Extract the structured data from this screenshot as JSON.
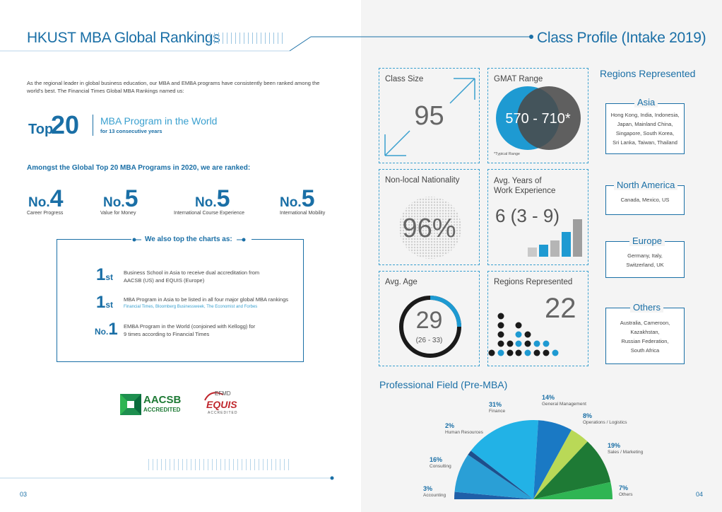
{
  "left": {
    "title": "HKUST MBA Global Rankings",
    "intro": "As the regional leader in global business education, our MBA and EMBA programs have consistently been ranked among the world's best. The Financial Times Global MBA Rankings named us:",
    "top": {
      "prefix": "Top",
      "number": "20",
      "headline": "MBA Program in the World",
      "sub": "for 13 consecutive years"
    },
    "amongst": "Amongst the Global Top 20 MBA Programs in 2020, we are ranked:",
    "ranks": [
      {
        "no": "No.",
        "num": "4",
        "caption": "Career Progress"
      },
      {
        "no": "No.",
        "num": "5",
        "caption": "Value for Money"
      },
      {
        "no": "No.",
        "num": "5",
        "caption": "International Course Experience"
      },
      {
        "no": "No.",
        "num": "5",
        "caption": "International Mobility"
      }
    ],
    "charts_title": "We also top the charts as:",
    "charts": [
      {
        "rank_big": "1",
        "rank_small": "st",
        "line1": "Business School in Asia to receive dual accreditation from",
        "line2": "AACSB (US) and EQUIS (Europe)"
      },
      {
        "rank_big": "1",
        "rank_small": "st",
        "line1": "MBA Program in Asia to be listed in all four major global MBA rankings",
        "line2": "Financial Times, Bloomberg Businessweek, The Economist and Forbes"
      },
      {
        "rank_big": "1",
        "rank_small": "No.",
        "line1": "EMBA Program in the World (conjoined with Kellogg) for",
        "line2": "9 times according to Financial Times"
      }
    ],
    "logos": {
      "aacsb": "AACSB",
      "aacsb_sub": "ACCREDITED",
      "efmd": "EFMD",
      "equis": "EQUIS",
      "equis_sub": "ACCREDITED"
    },
    "page_number": "03"
  },
  "right": {
    "title": "Class Profile (Intake 2019)",
    "class_size": {
      "label": "Class Size",
      "value": "95"
    },
    "gmat": {
      "label": "GMAT Range",
      "value": "570 - 710*",
      "note": "*Typical Range"
    },
    "nonlocal": {
      "label": "Non-local Nationality",
      "value": "96%"
    },
    "work": {
      "label_line1": "Avg. Years of",
      "label_line2": "Work Experience",
      "value": "6 (3 - 9)"
    },
    "age": {
      "label": "Avg. Age",
      "value": "29",
      "range": "(26 - 33)"
    },
    "regions_count": {
      "label": "Regions Represented",
      "value": "22"
    },
    "regions": {
      "heading": "Regions Represented",
      "asia": {
        "title": "Asia",
        "lines": [
          "Hong Kong, India, Indonesia,",
          "Japan, Mainland China,",
          "Singapore, South Korea,",
          "Sri Lanka, Taiwan, Thailand"
        ]
      },
      "na": {
        "title": "North America",
        "lines": [
          "Canada, Mexico, US"
        ]
      },
      "europe": {
        "title": "Europe",
        "lines": [
          "Germany, Italy,",
          "Switzerland, UK"
        ]
      },
      "others": {
        "title": "Others",
        "lines": [
          "Australia, Cameroon,",
          "Kazakhstan,",
          "Russian Federation,",
          "South Africa"
        ]
      }
    },
    "professional": {
      "title": "Professional Field (Pre-MBA)",
      "slices": [
        {
          "pct": "3%",
          "label": "Accounting",
          "value": 3,
          "color": "#1f5fa8"
        },
        {
          "pct": "16%",
          "label": "Consulting",
          "value": 16,
          "color": "#2a9fd6"
        },
        {
          "pct": "2%",
          "label": "Human Resources",
          "value": 2,
          "color": "#1d4f8c"
        },
        {
          "pct": "31%",
          "label": "Finance",
          "value": 31,
          "color": "#22b2e6"
        },
        {
          "pct": "14%",
          "label": "General Management",
          "value": 14,
          "color": "#1a79c4"
        },
        {
          "pct": "8%",
          "label": "Operations / Logistics",
          "value": 8,
          "color": "#b9d957"
        },
        {
          "pct": "19%",
          "label": "Sales / Marketing",
          "value": 19,
          "color": "#1e7a35"
        },
        {
          "pct": "7%",
          "label": "Others",
          "value": 7,
          "color": "#2fb553"
        }
      ]
    },
    "page_number": "04"
  }
}
